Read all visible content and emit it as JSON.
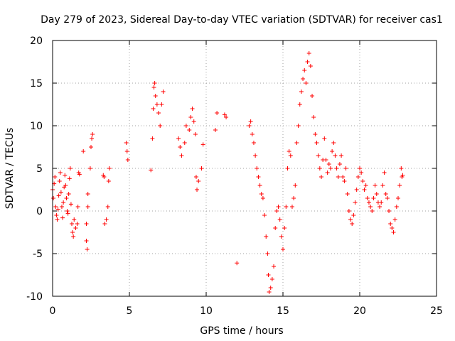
{
  "chart_data": {
    "type": "scatter",
    "title": "Day 279 of 2023, Sidereal Day-to-day VTEC variation (SDTVAR) for receiver cas1",
    "xlabel": "GPS time / hours",
    "ylabel": "SDTVAR / TECUs",
    "xlim": [
      0,
      25
    ],
    "ylim": [
      -10,
      20
    ],
    "xticks": [
      0,
      5,
      10,
      15,
      20,
      25
    ],
    "yticks": [
      -10,
      -5,
      0,
      5,
      10,
      15,
      20
    ],
    "xtick_labels": [
      "0",
      "5",
      "10",
      "15",
      "20",
      "25"
    ],
    "ytick_labels": [
      "-10",
      "-5",
      "0",
      "5",
      "10",
      "15",
      "20"
    ],
    "grid": true,
    "marker": "+",
    "color": "#ff0000",
    "series": [
      {
        "name": "cas1",
        "points": [
          [
            0.0,
            2.5
          ],
          [
            0.05,
            1.5
          ],
          [
            0.1,
            3.2
          ],
          [
            0.15,
            4.0
          ],
          [
            0.2,
            0.5
          ],
          [
            0.25,
            -0.5
          ],
          [
            0.3,
            -1.0
          ],
          [
            0.35,
            0.2
          ],
          [
            0.4,
            1.8
          ],
          [
            0.45,
            3.5
          ],
          [
            0.5,
            4.5
          ],
          [
            0.55,
            2.2
          ],
          [
            0.6,
            0.5
          ],
          [
            0.65,
            -0.8
          ],
          [
            0.7,
            1.0
          ],
          [
            0.75,
            2.8
          ],
          [
            0.8,
            4.2
          ],
          [
            0.85,
            3.0
          ],
          [
            0.9,
            1.5
          ],
          [
            0.95,
            0.0
          ],
          [
            1.0,
            -0.3
          ],
          [
            1.05,
            2.0
          ],
          [
            1.1,
            3.8
          ],
          [
            1.15,
            5.0
          ],
          [
            1.2,
            0.8
          ],
          [
            1.25,
            -1.5
          ],
          [
            1.3,
            -2.5
          ],
          [
            1.35,
            -3.0
          ],
          [
            1.4,
            -1.0
          ],
          [
            1.5,
            -2.0
          ],
          [
            1.6,
            -1.5
          ],
          [
            1.65,
            0.5
          ],
          [
            1.7,
            4.5
          ],
          [
            1.75,
            4.3
          ],
          [
            2.0,
            7.0
          ],
          [
            2.2,
            -3.5
          ],
          [
            2.25,
            -4.5
          ],
          [
            2.2,
            -1.5
          ],
          [
            2.3,
            0.5
          ],
          [
            2.3,
            2.0
          ],
          [
            2.45,
            5.0
          ],
          [
            2.5,
            7.5
          ],
          [
            2.55,
            8.5
          ],
          [
            2.6,
            9.0
          ],
          [
            3.3,
            4.2
          ],
          [
            3.35,
            4.0
          ],
          [
            3.4,
            -1.5
          ],
          [
            3.5,
            -1.0
          ],
          [
            3.6,
            0.5
          ],
          [
            3.65,
            3.5
          ],
          [
            3.7,
            5.0
          ],
          [
            4.8,
            8.0
          ],
          [
            4.85,
            7.0
          ],
          [
            4.9,
            6.0
          ],
          [
            6.4,
            4.8
          ],
          [
            6.5,
            8.5
          ],
          [
            6.55,
            12.0
          ],
          [
            6.6,
            14.5
          ],
          [
            6.65,
            15.0
          ],
          [
            6.7,
            13.5
          ],
          [
            6.8,
            12.5
          ],
          [
            6.9,
            11.5
          ],
          [
            7.0,
            10.0
          ],
          [
            7.1,
            12.5
          ],
          [
            7.2,
            14.0
          ],
          [
            8.2,
            8.5
          ],
          [
            8.3,
            7.5
          ],
          [
            8.4,
            6.5
          ],
          [
            8.6,
            8.0
          ],
          [
            8.7,
            10.0
          ],
          [
            8.9,
            9.5
          ],
          [
            9.0,
            11.0
          ],
          [
            9.1,
            12.0
          ],
          [
            9.2,
            10.5
          ],
          [
            9.3,
            9.0
          ],
          [
            9.35,
            4.0
          ],
          [
            9.4,
            2.5
          ],
          [
            9.5,
            3.5
          ],
          [
            9.7,
            5.0
          ],
          [
            9.8,
            7.8
          ],
          [
            10.6,
            9.5
          ],
          [
            10.7,
            11.5
          ],
          [
            11.2,
            11.3
          ],
          [
            11.3,
            11.0
          ],
          [
            12.0,
            -6.1
          ],
          [
            12.8,
            10.0
          ],
          [
            12.9,
            10.5
          ],
          [
            13.0,
            9.0
          ],
          [
            13.1,
            8.0
          ],
          [
            13.2,
            6.5
          ],
          [
            13.3,
            5.0
          ],
          [
            13.4,
            4.0
          ],
          [
            13.5,
            3.0
          ],
          [
            13.6,
            2.0
          ],
          [
            13.7,
            1.5
          ],
          [
            13.8,
            -0.5
          ],
          [
            13.9,
            -3.0
          ],
          [
            14.0,
            -5.0
          ],
          [
            14.05,
            -7.5
          ],
          [
            14.1,
            -9.5
          ],
          [
            14.2,
            -9.0
          ],
          [
            14.3,
            -8.0
          ],
          [
            14.4,
            -6.5
          ],
          [
            14.5,
            -2.0
          ],
          [
            14.6,
            0.0
          ],
          [
            14.7,
            0.5
          ],
          [
            14.8,
            -1.0
          ],
          [
            14.9,
            -3.0
          ],
          [
            15.0,
            -4.5
          ],
          [
            15.1,
            -2.0
          ],
          [
            15.2,
            0.5
          ],
          [
            15.3,
            5.0
          ],
          [
            15.4,
            7.0
          ],
          [
            15.5,
            6.5
          ],
          [
            15.6,
            0.5
          ],
          [
            15.7,
            1.5
          ],
          [
            15.8,
            3.0
          ],
          [
            15.9,
            8.0
          ],
          [
            16.0,
            10.0
          ],
          [
            16.1,
            12.5
          ],
          [
            16.2,
            14.0
          ],
          [
            16.3,
            15.5
          ],
          [
            16.4,
            16.5
          ],
          [
            16.5,
            15.0
          ],
          [
            16.6,
            17.5
          ],
          [
            16.7,
            18.5
          ],
          [
            16.8,
            17.0
          ],
          [
            16.9,
            13.5
          ],
          [
            17.0,
            11.0
          ],
          [
            17.1,
            9.0
          ],
          [
            17.2,
            8.0
          ],
          [
            17.3,
            6.5
          ],
          [
            17.4,
            5.0
          ],
          [
            17.5,
            4.0
          ],
          [
            17.6,
            6.0
          ],
          [
            17.7,
            8.5
          ],
          [
            17.8,
            6.0
          ],
          [
            17.9,
            4.5
          ],
          [
            18.0,
            5.5
          ],
          [
            18.1,
            5.0
          ],
          [
            18.2,
            7.0
          ],
          [
            18.3,
            8.0
          ],
          [
            18.4,
            6.5
          ],
          [
            18.5,
            5.0
          ],
          [
            18.6,
            4.0
          ],
          [
            18.7,
            5.5
          ],
          [
            18.8,
            6.5
          ],
          [
            18.9,
            4.0
          ],
          [
            19.0,
            3.5
          ],
          [
            19.1,
            5.0
          ],
          [
            19.2,
            2.0
          ],
          [
            19.3,
            0.0
          ],
          [
            19.4,
            -1.0
          ],
          [
            19.5,
            -1.5
          ],
          [
            19.6,
            -0.5
          ],
          [
            19.7,
            1.0
          ],
          [
            19.8,
            2.5
          ],
          [
            19.9,
            4.0
          ],
          [
            20.0,
            5.0
          ],
          [
            20.1,
            4.5
          ],
          [
            20.2,
            3.5
          ],
          [
            20.3,
            2.5
          ],
          [
            20.4,
            3.0
          ],
          [
            20.5,
            1.5
          ],
          [
            20.6,
            1.0
          ],
          [
            20.7,
            0.5
          ],
          [
            20.8,
            0.0
          ],
          [
            20.9,
            1.5
          ],
          [
            21.0,
            3.0
          ],
          [
            21.1,
            2.0
          ],
          [
            21.2,
            1.0
          ],
          [
            21.3,
            0.5
          ],
          [
            21.4,
            1.0
          ],
          [
            21.5,
            3.0
          ],
          [
            21.6,
            4.5
          ],
          [
            21.7,
            2.0
          ],
          [
            21.8,
            1.5
          ],
          [
            21.9,
            0.0
          ],
          [
            22.0,
            -1.5
          ],
          [
            22.1,
            -2.0
          ],
          [
            22.2,
            -2.5
          ],
          [
            22.3,
            -1.0
          ],
          [
            22.4,
            0.5
          ],
          [
            22.5,
            1.5
          ],
          [
            22.6,
            3.0
          ],
          [
            22.7,
            5.0
          ],
          [
            22.75,
            4.0
          ],
          [
            22.8,
            4.2
          ]
        ]
      }
    ]
  }
}
